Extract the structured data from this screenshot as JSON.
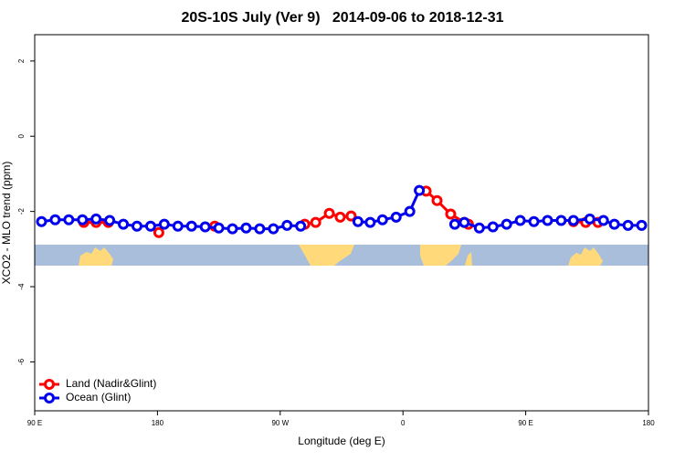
{
  "chart_data": {
    "type": "line",
    "title": "20S-10S July (Ver 9)   2014-09-06 to 2018-12-31",
    "x_label": "Longitude (deg E)",
    "y_label": "XCO2 - MLO trend (ppm)",
    "xlim": [
      90,
      540
    ],
    "xticks": [
      {
        "value": 90,
        "label": "90 E"
      },
      180,
      {
        "value": 270,
        "label": "90 W"
      },
      {
        "value": 360,
        "label": "0"
      },
      {
        "value": 450,
        "label": "90 E"
      },
      {
        "value": 540,
        "label": "180"
      }
    ],
    "ylim": [
      -7.3,
      2.7
    ],
    "yticks": [
      2,
      0,
      -2,
      -4,
      -6
    ],
    "legend": "bottomleft",
    "series": [
      {
        "name": "Land (Nadir&Glint)",
        "color": "#ff0000",
        "x": [
          126,
          135,
          144,
          null,
          181,
          null,
          222,
          null,
          288,
          296,
          306,
          314,
          322,
          null,
          377,
          385,
          395,
          405,
          408,
          null,
          485,
          494,
          503
        ],
        "values": [
          -2.29,
          -2.29,
          -2.29,
          null,
          -2.56,
          null,
          -2.39,
          null,
          -2.34,
          -2.29,
          -2.05,
          -2.15,
          -2.12,
          null,
          -1.46,
          -1.71,
          -2.07,
          -2.29,
          -2.34,
          null,
          -2.27,
          -2.29,
          -2.29
        ]
      },
      {
        "name": "Ocean (Glint)",
        "color": "#0000ee",
        "x": [
          95,
          105,
          115,
          125,
          135,
          145,
          155,
          165,
          175,
          185,
          195,
          205,
          215,
          225,
          235,
          245,
          255,
          265,
          275,
          285,
          null,
          327,
          336,
          345,
          355,
          365,
          372,
          null,
          398,
          405,
          416,
          426,
          436,
          446,
          456,
          466,
          476,
          485,
          497,
          507,
          515,
          525,
          535
        ],
        "values": [
          -2.27,
          -2.22,
          -2.22,
          -2.22,
          -2.2,
          -2.24,
          -2.34,
          -2.39,
          -2.39,
          -2.34,
          -2.39,
          -2.39,
          -2.41,
          -2.44,
          -2.46,
          -2.44,
          -2.46,
          -2.46,
          -2.37,
          -2.39,
          null,
          -2.27,
          -2.29,
          -2.22,
          -2.15,
          -2.0,
          -1.44,
          null,
          -2.34,
          -2.29,
          -2.44,
          -2.41,
          -2.34,
          -2.24,
          -2.27,
          -2.24,
          -2.24,
          -2.24,
          -2.2,
          -2.24,
          -2.34,
          -2.37,
          -2.37
        ]
      }
    ]
  }
}
